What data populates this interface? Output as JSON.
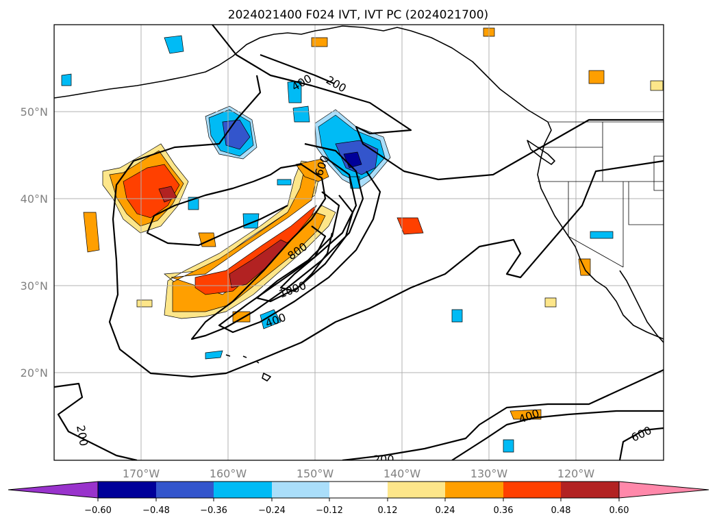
{
  "title": "2024021400 F024 IVT, IVT PC (2024021700)",
  "lat_labels": [
    "50°N",
    "40°N",
    "30°N",
    "20°N"
  ],
  "lon_labels": [
    "170°W",
    "160°W",
    "150°W",
    "140°W",
    "130°W",
    "120°W"
  ],
  "colorbar": {
    "ticks": [
      "−0.60",
      "−0.48",
      "−0.36",
      "−0.24",
      "−0.12",
      "0.12",
      "0.24",
      "0.36",
      "0.48",
      "0.60"
    ],
    "colors": [
      "#9933cc",
      "#000099",
      "#3355cc",
      "#00bbf5",
      "#aadefa",
      "#ffffff",
      "#fde68a",
      "#ff9f00",
      "#ff4000",
      "#b22222",
      "#ff88aa"
    ],
    "extend": "both"
  },
  "contour_labels": [
    "200",
    "400",
    "600",
    "800",
    "1000",
    "400",
    "200",
    "400",
    "600",
    "200"
  ],
  "colors": {
    "neg_extreme": "#000099",
    "neg_strong": "#3355cc",
    "neg_mid": "#00bbf5",
    "neg_weak": "#aadefa",
    "pos_weak": "#fde68a",
    "pos_mid": "#ff9f00",
    "pos_strong": "#ff4000",
    "pos_extreme": "#b22222"
  }
}
